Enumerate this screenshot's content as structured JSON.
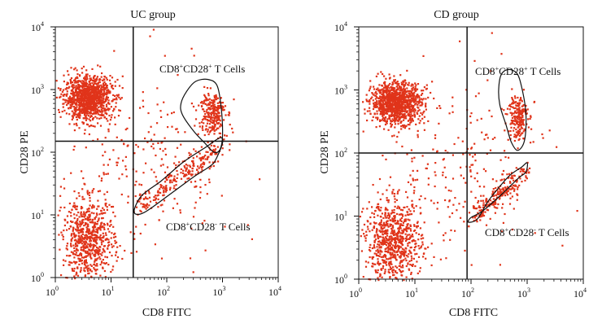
{
  "chart_data": [
    {
      "type": "scatter",
      "title": "UC group",
      "xlabel": "CD8 FITC",
      "ylabel": "CD28 PE",
      "x_scale": "log",
      "y_scale": "log",
      "xlim": [
        1,
        10000
      ],
      "ylim": [
        1,
        10000
      ],
      "quadrant_gate": {
        "x": 25,
        "y": 150
      },
      "gates": [
        {
          "label_main": "CD8",
          "label_sup1": "+",
          "label_mid": "CD28",
          "label_sup2": "+",
          "label_tail": " T Cells",
          "polygon": [
            [
              180,
              600
            ],
            [
              190,
              400
            ],
            [
              300,
              220
            ],
            [
              480,
              140
            ],
            [
              700,
              100
            ],
            [
              900,
              110
            ],
            [
              1000,
              180
            ],
            [
              950,
              500
            ],
            [
              800,
              1150
            ],
            [
              550,
              1450
            ],
            [
              330,
              1350
            ],
            [
              230,
              950
            ]
          ]
        },
        {
          "label_main": "CD8",
          "label_sup1": "+",
          "label_mid": "CD28",
          "label_sup2": "-",
          "label_tail": " T Cells",
          "polygon": [
            [
              26,
              11
            ],
            [
              40,
              11
            ],
            [
              120,
              22
            ],
            [
              300,
              40
            ],
            [
              600,
              60
            ],
            [
              750,
              75
            ],
            [
              1000,
              140
            ],
            [
              900,
              170
            ],
            [
              500,
              120
            ],
            [
              200,
              70
            ],
            [
              80,
              35
            ],
            [
              35,
              20
            ]
          ]
        }
      ],
      "clusters": [
        {
          "name": "CD28+ CD8-",
          "cx": 3.8,
          "cy": 750,
          "sx": 0.21,
          "sy": 0.17,
          "n": 1150
        },
        {
          "name": "CD28- CD8-",
          "cx": 3.8,
          "cy": 4,
          "sx": 0.23,
          "sy": 0.32,
          "n": 700
        },
        {
          "name": "CD8+ CD28+",
          "cx": 620,
          "cy": 450,
          "sx": 0.12,
          "sy": 0.17,
          "n": 230
        },
        {
          "name": "CD8+ CD28-",
          "line_x": [
            30,
            1000
          ],
          "line_y": [
            14,
            140
          ],
          "spread": 0.06,
          "n": 210
        },
        {
          "name": "scatter",
          "cx": 40,
          "cy": 60,
          "sx": 0.8,
          "sy": 0.8,
          "n": 260
        }
      ]
    },
    {
      "type": "scatter",
      "title": "CD group",
      "xlabel": "CD8 FITC",
      "ylabel": "CD28 PE",
      "x_scale": "log",
      "y_scale": "log",
      "xlim": [
        1,
        10000
      ],
      "ylim": [
        1,
        10000
      ],
      "quadrant_gate": {
        "x": 85,
        "y": 100
      },
      "gates": [
        {
          "label_main": "CD8",
          "label_sup1": "+",
          "label_mid": "CD28",
          "label_sup2": "+",
          "label_tail": " T Cells",
          "polygon": [
            [
              310,
              950
            ],
            [
              330,
              550
            ],
            [
              420,
              280
            ],
            [
              520,
              150
            ],
            [
              680,
              110
            ],
            [
              900,
              160
            ],
            [
              950,
              420
            ],
            [
              800,
              1100
            ],
            [
              650,
              1850
            ],
            [
              450,
              2100
            ],
            [
              340,
              1700
            ]
          ]
        },
        {
          "label_main": "CD8",
          "label_sup1": "+",
          "label_mid": "CD28",
          "label_sup2": "-",
          "label_tail": " T Cells",
          "polygon": [
            [
              90,
              8
            ],
            [
              130,
              9
            ],
            [
              200,
              17
            ],
            [
              330,
              30
            ],
            [
              500,
              45
            ],
            [
              800,
              60
            ],
            [
              1000,
              70
            ],
            [
              950,
              50
            ],
            [
              700,
              40
            ],
            [
              350,
              22
            ],
            [
              160,
              12
            ],
            [
              100,
              9.5
            ]
          ]
        }
      ],
      "clusters": [
        {
          "name": "CD28+ CD8-",
          "cx": 4.5,
          "cy": 650,
          "sx": 0.22,
          "sy": 0.16,
          "n": 1100
        },
        {
          "name": "CD28- CD8-",
          "cx": 4,
          "cy": 4,
          "sx": 0.25,
          "sy": 0.32,
          "n": 750
        },
        {
          "name": "CD8+ CD28+",
          "cx": 650,
          "cy": 400,
          "sx": 0.09,
          "sy": 0.18,
          "n": 200
        },
        {
          "name": "CD8+ CD28-",
          "line_x": [
            110,
            900
          ],
          "line_y": [
            10,
            55
          ],
          "spread": 0.06,
          "n": 190
        },
        {
          "name": "scatter",
          "cx": 50,
          "cy": 50,
          "sx": 0.8,
          "sy": 0.8,
          "n": 260
        }
      ]
    }
  ],
  "colors": {
    "dots": "#e0341a",
    "gate_line": "#111111",
    "frame": "#111111"
  },
  "tick_labels": {
    "base": "10",
    "exponents": [
      "0",
      "1",
      "2",
      "3",
      "4"
    ]
  }
}
